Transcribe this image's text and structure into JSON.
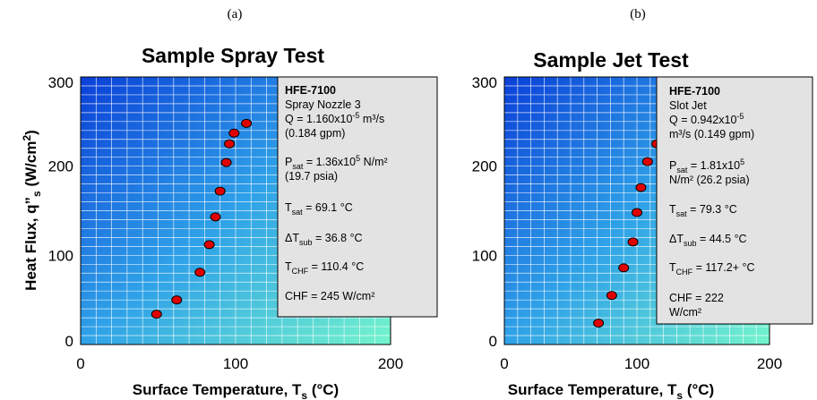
{
  "chart_data": [
    {
      "type": "scatter",
      "panel_label": "(a)",
      "title": "Sample Spray Test",
      "xlabel": "Surface Temperature, T",
      "xlabel_sub": "s",
      "xlabel_unit": " (°C)",
      "ylabel": "Heat Flux, q”",
      "ylabel_sub": "s",
      "ylabel_unit": " (W/cm",
      "ylabel_sup": "2",
      "ylabel_close": ")",
      "xlim": [
        0,
        200
      ],
      "ylim": [
        0,
        300
      ],
      "x_ticks": [
        0,
        100,
        200
      ],
      "y_ticks": [
        0,
        100,
        200,
        300
      ],
      "grid": true,
      "points": [
        {
          "x": 49,
          "y": 34
        },
        {
          "x": 62,
          "y": 50
        },
        {
          "x": 77,
          "y": 81
        },
        {
          "x": 83,
          "y": 112
        },
        {
          "x": 87,
          "y": 143
        },
        {
          "x": 90,
          "y": 172
        },
        {
          "x": 94,
          "y": 204
        },
        {
          "x": 96,
          "y": 225
        },
        {
          "x": 99,
          "y": 237
        },
        {
          "x": 107,
          "y": 248
        }
      ],
      "annotation": {
        "fluid": "HFE-7100",
        "nozzle": "Spray Nozzle 3",
        "flow_prefix": "Q = 1.160x10",
        "flow_exp": "-5",
        "flow_unit": " m³/s",
        "flow_alt": "(0.184 gpm)",
        "psat_label": "P",
        "psat_sub": "sat",
        "psat_value": " = 1.36x10",
        "psat_exp": "5",
        "psat_unit": " N/m²",
        "psat_alt": "(19.7 psia)",
        "tsat_label": "T",
        "tsat_sub": "sat",
        "tsat_value": " = 69.1 °C",
        "dtsub_label": "ΔT",
        "dtsub_sub": "sub",
        "dtsub_value": " = 36.8 °C",
        "tchf_label": "T",
        "tchf_sub": "CHF",
        "tchf_value": " = 110.4 °C",
        "chf": "CHF = 245 W/cm²",
        "chf_cont": ""
      }
    },
    {
      "type": "scatter",
      "panel_label": "(b)",
      "title": "Sample Jet Test",
      "xlabel": "Surface Temperature, T",
      "xlabel_sub": "s",
      "xlabel_unit": " (°C)",
      "xlim": [
        0,
        200
      ],
      "ylim": [
        0,
        300
      ],
      "x_ticks": [
        0,
        100,
        200
      ],
      "y_ticks": [
        0,
        100,
        200,
        300
      ],
      "grid": true,
      "points": [
        {
          "x": 71,
          "y": 24
        },
        {
          "x": 81,
          "y": 55
        },
        {
          "x": 90,
          "y": 86
        },
        {
          "x": 97,
          "y": 115
        },
        {
          "x": 100,
          "y": 148
        },
        {
          "x": 103,
          "y": 176
        },
        {
          "x": 108,
          "y": 205
        },
        {
          "x": 115,
          "y": 225
        }
      ],
      "annotation": {
        "fluid": "HFE-7100",
        "nozzle": "Slot Jet",
        "flow_prefix": "Q = 0.942x10",
        "flow_exp": "-5",
        "flow_unit": "",
        "flow_alt": "m³/s  (0.149 gpm)",
        "psat_label": "P",
        "psat_sub": "sat",
        "psat_value": " = 1.81x10",
        "psat_exp": "5",
        "psat_unit": "",
        "psat_alt": "N/m²  (26.2 psia)",
        "tsat_label": "T",
        "tsat_sub": "sat",
        "tsat_value": " = 79.3 °C",
        "dtsub_label": "ΔT",
        "dtsub_sub": "sub",
        "dtsub_value": " = 44.5 °C",
        "tchf_label": "T",
        "tchf_sub": "CHF",
        "tchf_value": " = 117.2+ °C",
        "chf": "CHF = 222",
        "chf_cont": "W/cm²"
      }
    }
  ],
  "colors": {
    "plot_gradient_start": "#0a3fd8",
    "plot_gradient_mid": "#2fa2e8",
    "plot_gradient_end": "#74f5cc",
    "grid": "#ffffff",
    "point_fill": "#e00000",
    "point_stroke": "#000000",
    "annotation_bg": "#e3e3e3"
  }
}
